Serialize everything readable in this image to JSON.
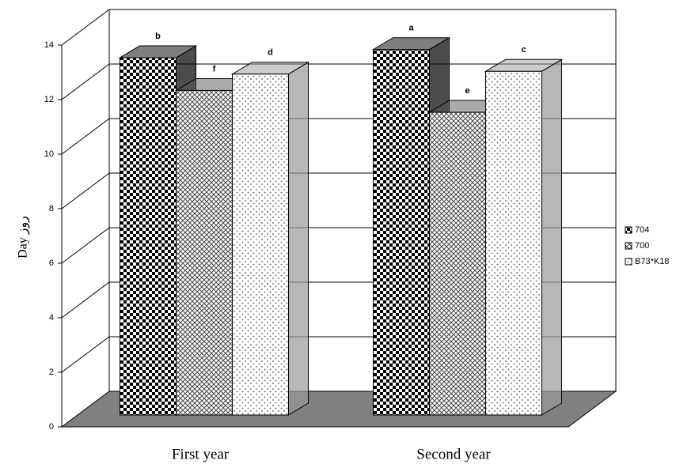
{
  "chart_data": {
    "type": "bar3d",
    "ylabel": "Day روز",
    "categories": [
      "First year",
      "Second year"
    ],
    "series": [
      {
        "name": "704",
        "color": "#000000",
        "values": [
          13.1,
          13.4
        ],
        "annotations": [
          "b",
          "a"
        ]
      },
      {
        "name": "700",
        "color": "#555555",
        "values": [
          11.9,
          11.1
        ],
        "annotations": [
          "f",
          "e"
        ]
      },
      {
        "name": "B73*K18",
        "color": "#999999",
        "values": [
          12.5,
          12.6
        ],
        "annotations": [
          "d",
          "c"
        ]
      }
    ],
    "ylim": [
      0,
      14
    ],
    "yticks": [
      0,
      2,
      4,
      6,
      8,
      10,
      12,
      14
    ],
    "grid": true,
    "legend": "right"
  }
}
